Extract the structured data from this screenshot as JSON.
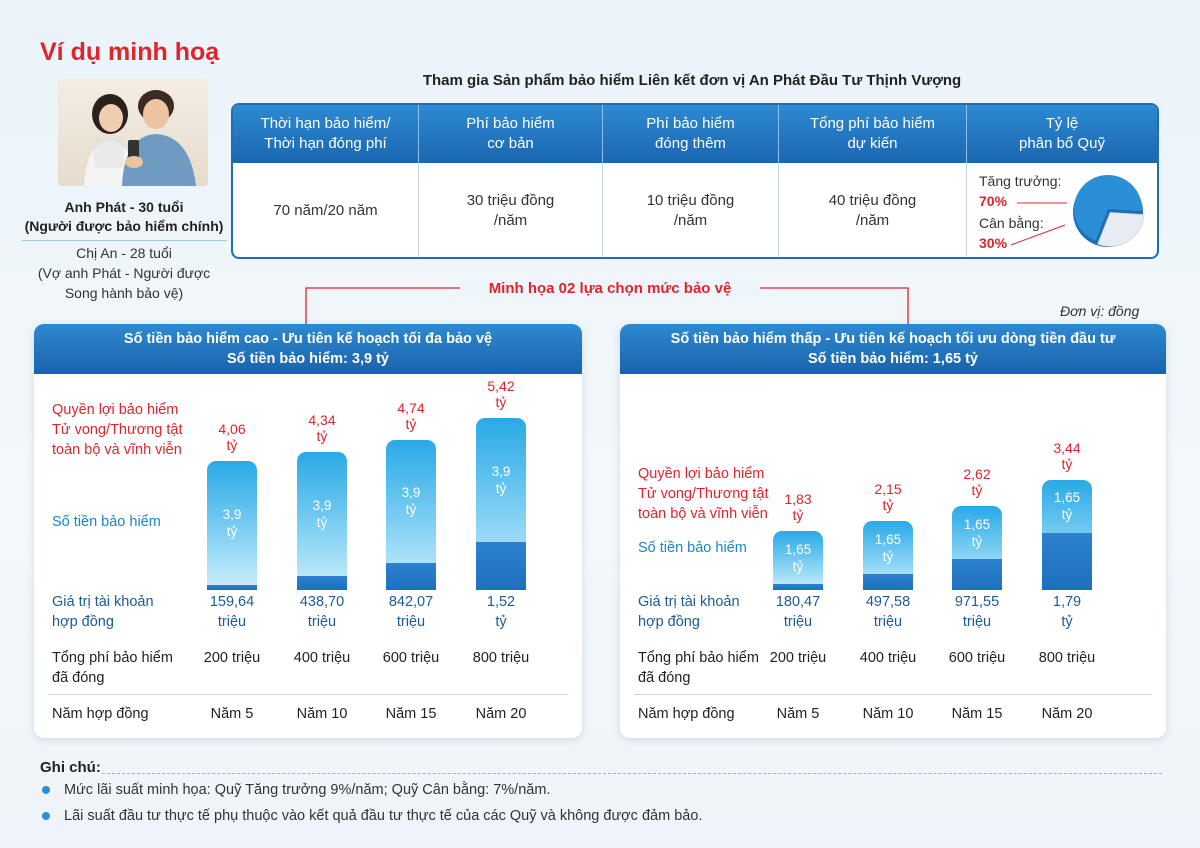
{
  "title": "Ví dụ minh hoạ",
  "product_heading": "Tham gia Sản phẩm bảo hiểm Liên kết đơn vị An Phát Đầu Tư Thịnh Vượng",
  "persona": {
    "main_line1": "Anh Phát - 30 tuổi",
    "main_line2": "(Người được bảo hiểm chính)",
    "spouse_line1": "Chị An - 28 tuổi",
    "spouse_line2": "(Vợ anh Phát - Người được",
    "spouse_line3": "Song hành bảo vệ)"
  },
  "info_table": {
    "headers": [
      {
        "line1": "Thời hạn bảo hiểm/",
        "line2": "Thời hạn đóng phí"
      },
      {
        "line1": "Phí bảo hiểm",
        "line2": "cơ bản"
      },
      {
        "line1": "Phí bảo hiểm",
        "line2": "đóng thêm"
      },
      {
        "line1": "Tổng phí bảo hiểm",
        "line2": "dự kiến"
      },
      {
        "line1": "Tỷ lệ",
        "line2": "phân bổ Quỹ"
      }
    ],
    "values": [
      {
        "line1": "70 năm/20 năm",
        "line2": ""
      },
      {
        "line1": "30 triệu đồng",
        "line2": "/năm"
      },
      {
        "line1": "10 triệu đồng",
        "line2": "/năm"
      },
      {
        "line1": "40 triệu đồng",
        "line2": "/năm"
      }
    ],
    "allocation": {
      "growth_label": "Tăng trưởng:",
      "growth_value": "70%",
      "growth_share": 70,
      "balanced_label": "Cân bằng:",
      "balanced_value": "30%",
      "balanced_share": 30,
      "colors": {
        "growth": "#2a8fd6",
        "balanced": "#e6ecf2",
        "leader": "#e0242c"
      }
    }
  },
  "options_title": "Minh họa 02 lựa chọn mức bảo vệ",
  "unit_note": "Đơn vị: đồng",
  "row_labels": {
    "benefit_line1": "Quyền lợi bảo hiểm",
    "benefit_line2": "Tử vong/Thương tật",
    "benefit_line3": "toàn bộ và vĩnh viễn",
    "sum_insured": "Số tiền bảo hiểm",
    "account_line1": "Giá trị tài khoản",
    "account_line2": "hợp đồng",
    "premium_line1": "Tổng phí bảo hiểm",
    "premium_line2": "đã đóng",
    "year": "Năm hợp đồng"
  },
  "chart_data": [
    {
      "type": "bar",
      "title": "Số tiền bảo hiểm cao - Ưu tiên kế hoạch tối đa bảo vệ",
      "subtitle": "Số tiền bảo hiểm: 3,9 tỷ",
      "categories": [
        "Năm 5",
        "Năm 10",
        "Năm 15",
        "Năm 20"
      ],
      "units": "tỷ đồng",
      "series": [
        {
          "name": "Giá trị tài khoản hợp đồng",
          "values": [
            0.15964,
            0.4387,
            0.84207,
            1.52
          ]
        },
        {
          "name": "Số tiền bảo hiểm",
          "values": [
            3.9,
            3.9,
            3.9,
            3.9
          ]
        },
        {
          "name": "Quyền lợi bảo hiểm Tử vong/Thương tật toàn bộ và vĩnh viễn",
          "values": [
            4.06,
            4.34,
            4.74,
            5.42
          ]
        }
      ],
      "labels": {
        "benefit": [
          "4,06",
          "4,34",
          "4,74",
          "5,42"
        ],
        "sum": [
          "3,9",
          "3,9",
          "3,9",
          "3,9"
        ],
        "account_value": [
          "159,64",
          "438,70",
          "842,07",
          "1,52"
        ],
        "account_unit": [
          "triệu",
          "triệu",
          "triệu",
          "tỷ"
        ],
        "premium": [
          "200 triệu",
          "400 triệu",
          "600 triệu",
          "800 triệu"
        ],
        "billion": "tỷ"
      }
    },
    {
      "type": "bar",
      "title": "Số tiền bảo hiểm thấp - Ưu tiên kế hoạch tối ưu dòng tiền đầu tư",
      "subtitle": "Số tiền bảo hiểm: 1,65 tỷ",
      "categories": [
        "Năm 5",
        "Năm 10",
        "Năm 15",
        "Năm 20"
      ],
      "units": "tỷ đồng",
      "series": [
        {
          "name": "Giá trị tài khoản hợp đồng",
          "values": [
            0.18047,
            0.49758,
            0.97155,
            1.79
          ]
        },
        {
          "name": "Số tiền bảo hiểm",
          "values": [
            1.65,
            1.65,
            1.65,
            1.65
          ]
        },
        {
          "name": "Quyền lợi bảo hiểm Tử vong/Thương tật toàn bộ và vĩnh viễn",
          "values": [
            1.83,
            2.15,
            2.62,
            3.44
          ]
        }
      ],
      "labels": {
        "benefit": [
          "1,83",
          "2,15",
          "2,62",
          "3,44"
        ],
        "sum": [
          "1,65",
          "1,65",
          "1,65",
          "1,65"
        ],
        "account_value": [
          "180,47",
          "497,58",
          "971,55",
          "1,79"
        ],
        "account_unit": [
          "triệu",
          "triệu",
          "triệu",
          "tỷ"
        ],
        "premium": [
          "200 triệu",
          "400 triệu",
          "600 triệu",
          "800 triệu"
        ],
        "billion": "tỷ"
      }
    }
  ],
  "notes": {
    "title": "Ghi chú:",
    "items": [
      "Mức lãi suất minh họa: Quỹ Tăng trưởng 9%/năm; Quỹ Cân bằng: 7%/năm.",
      "Lãi suất đầu tư thực tế phụ thuộc vào kết quả đầu tư thực tế của các Quỹ và không được đảm bảo."
    ]
  }
}
